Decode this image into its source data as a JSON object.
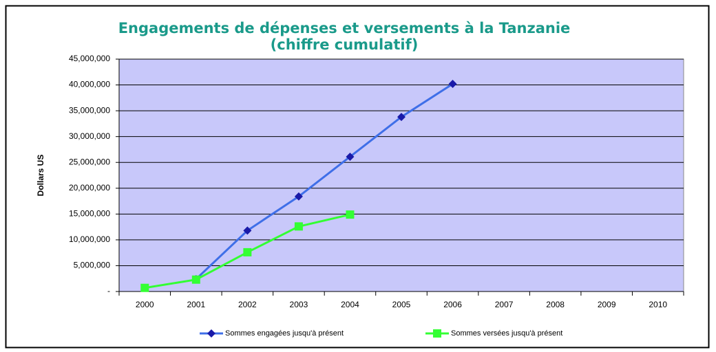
{
  "chart_data": {
    "type": "line",
    "title": "Engagements de dépenses et versements à la Tanzanie",
    "subtitle": "(chiffre cumulatif)",
    "y_label": "Dollars US",
    "categories": [
      "2000",
      "2001",
      "2002",
      "2003",
      "2004",
      "2005",
      "2006",
      "2007",
      "2008",
      "2009",
      "2010"
    ],
    "series": [
      {
        "name": "Sommes engagées jusqu'à présent",
        "color": "#3f6fe8",
        "marker": "diamond",
        "marker_color": "#1a1aa8",
        "values": [
          null,
          2400000,
          11800000,
          18400000,
          26100000,
          33800000,
          40200000,
          null,
          null,
          null,
          null
        ]
      },
      {
        "name": "Sommes versées jusqu'à présent",
        "color": "#33ff33",
        "marker": "square",
        "marker_color": "#33ff33",
        "values": [
          700000,
          2300000,
          7600000,
          12600000,
          14900000,
          null,
          null,
          null,
          null,
          null,
          null
        ]
      }
    ],
    "ylim": [
      0,
      45000000
    ],
    "yticks": [
      {
        "value": 0,
        "label": "-"
      },
      {
        "value": 5000000,
        "label": "5,000,000"
      },
      {
        "value": 10000000,
        "label": "10,000,000"
      },
      {
        "value": 15000000,
        "label": "15,000,000"
      },
      {
        "value": 20000000,
        "label": "20,000,000"
      },
      {
        "value": 25000000,
        "label": "25,000,000"
      },
      {
        "value": 30000000,
        "label": "30,000,000"
      },
      {
        "value": 35000000,
        "label": "35,000,000"
      },
      {
        "value": 40000000,
        "label": "40,000,000"
      },
      {
        "value": 45000000,
        "label": "45,000,000"
      }
    ],
    "grid": true,
    "legend": "bottom"
  }
}
